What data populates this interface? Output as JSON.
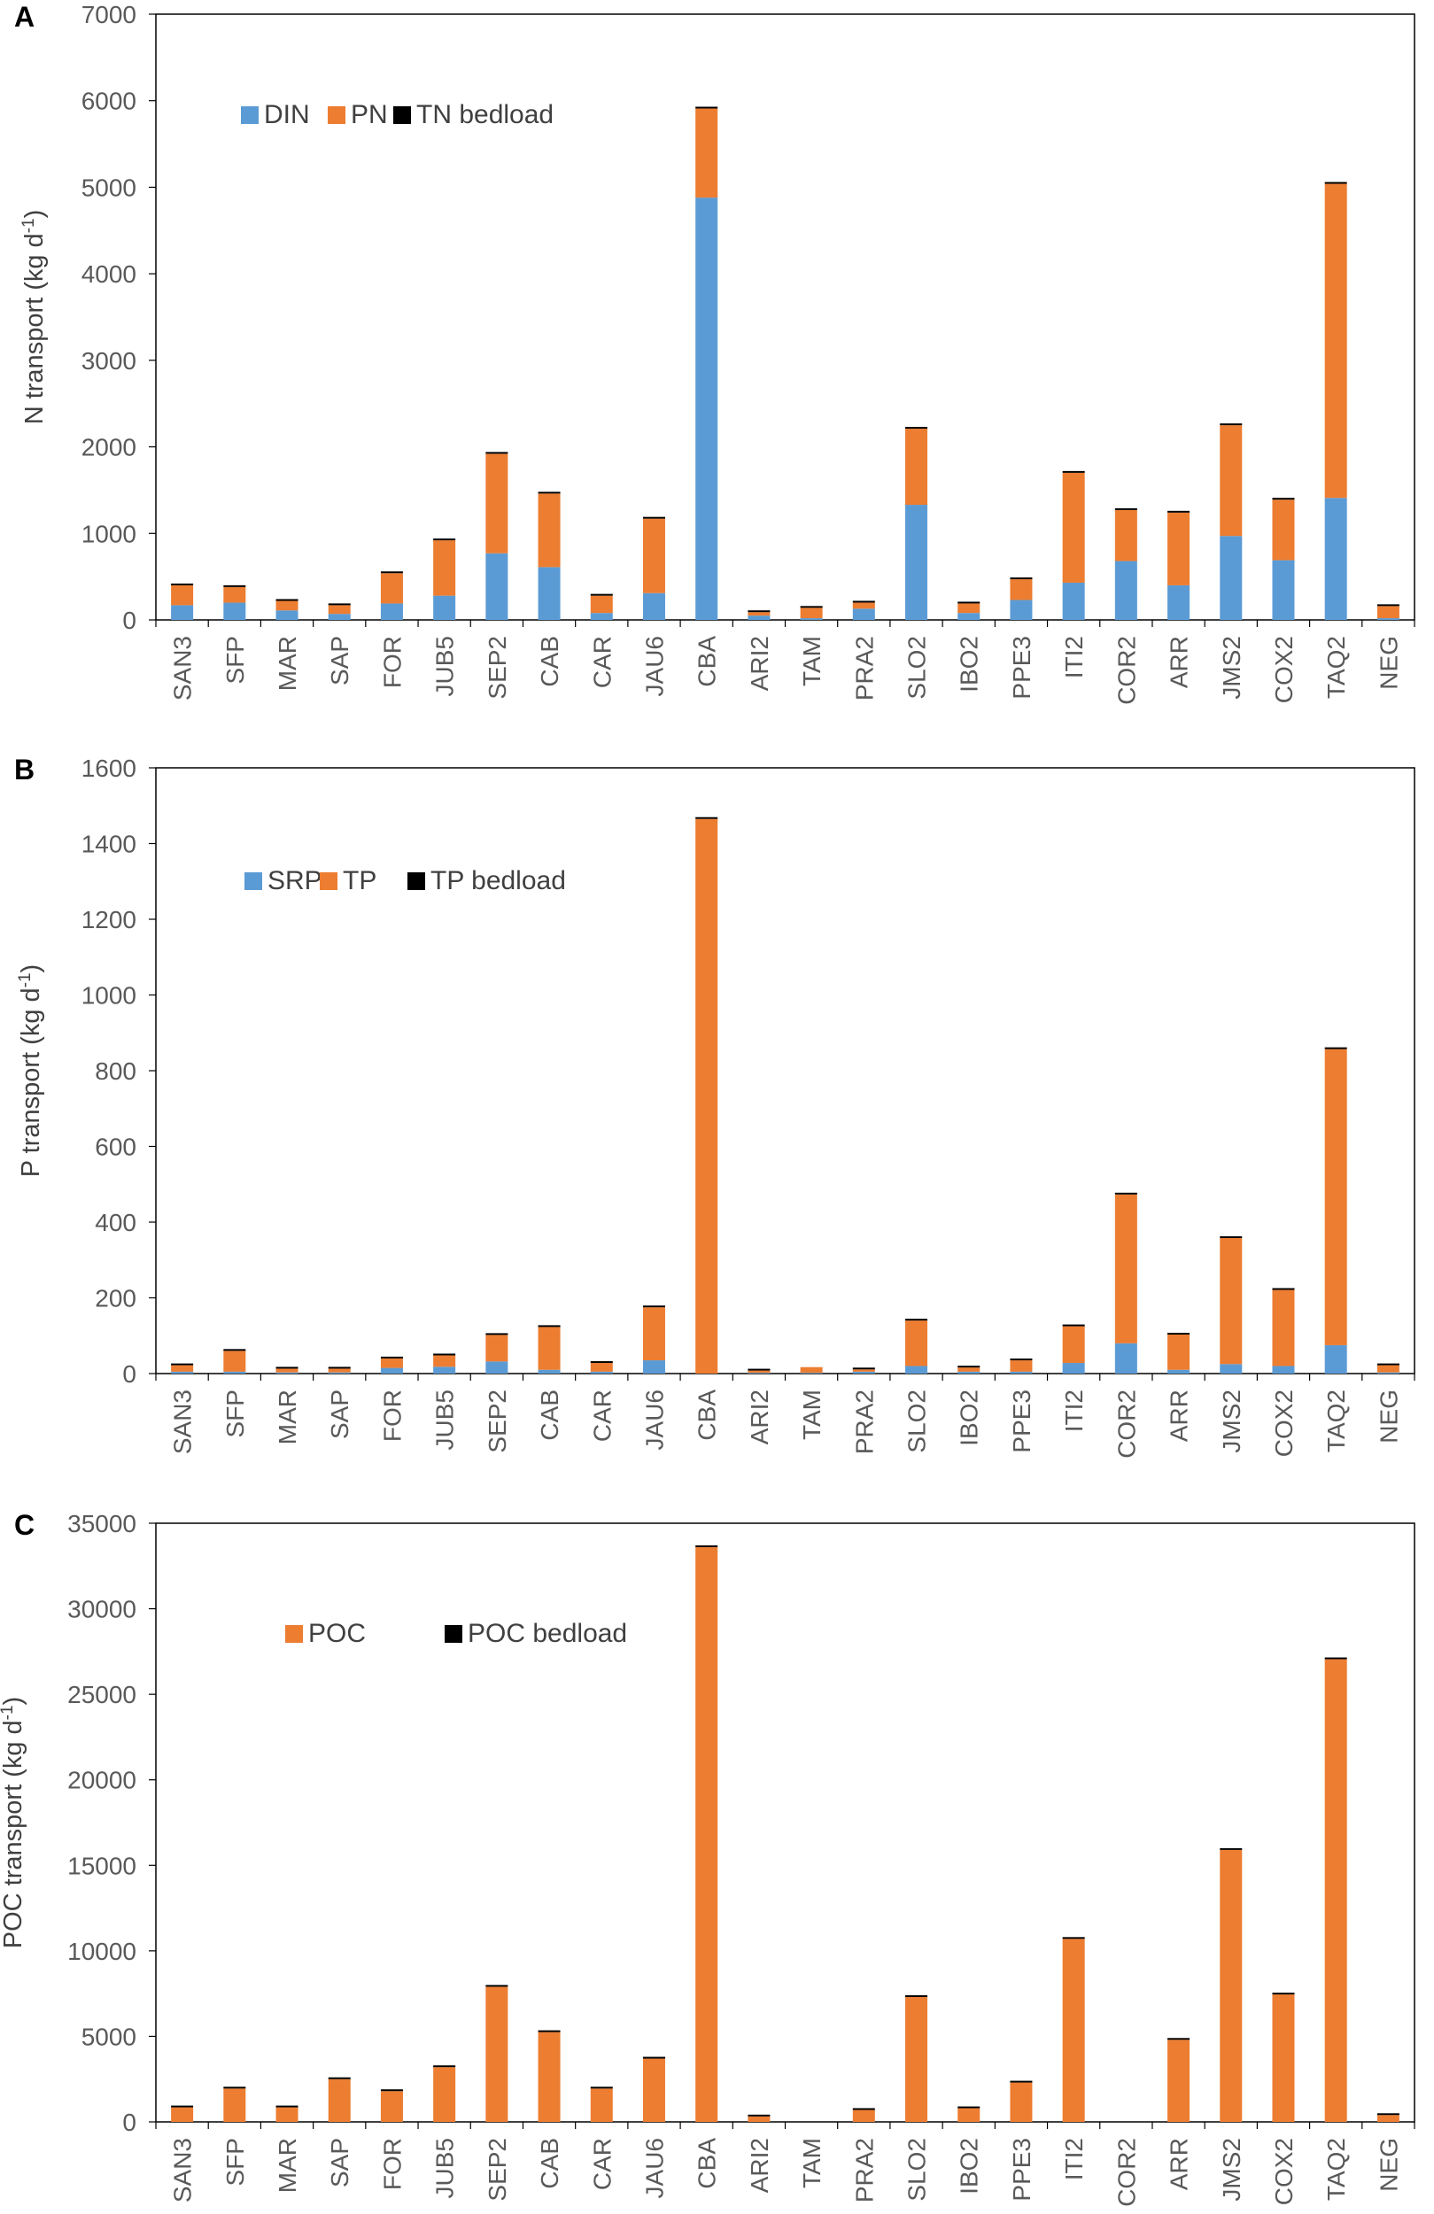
{
  "colors": {
    "DIN": "#5b9bd5",
    "SRP": "#5b9bd5",
    "PN": "#ed7d31",
    "TP": "#ed7d31",
    "POC": "#ed7d31",
    "bedload": "#000000",
    "axis": "#000000",
    "tickText": "#595959"
  },
  "chart_data": [
    {
      "panel": "A",
      "type": "bar",
      "stacked": true,
      "ylabel": "N transport (kg d",
      "ylabel_sup": "-1",
      "ylabel_end": ")",
      "ylim": [
        0,
        7000
      ],
      "yticks": [
        0,
        1000,
        2000,
        3000,
        4000,
        5000,
        6000,
        7000
      ],
      "categories": [
        "SAN3",
        "SFP",
        "MAR",
        "SAP",
        "FOR",
        "JUB5",
        "SEP2",
        "CAB",
        "CAR",
        "JAU6",
        "CBA",
        "ARI2",
        "TAM",
        "PRA2",
        "SLO2",
        "IBO2",
        "PPE3",
        "ITI2",
        "COR2",
        "ARR",
        "JMS2",
        "COX2",
        "TAQ2",
        "NEG"
      ],
      "series": [
        {
          "name": "DIN",
          "color": "#5b9bd5",
          "values": [
            170,
            200,
            110,
            70,
            190,
            280,
            770,
            610,
            80,
            310,
            4880,
            50,
            20,
            130,
            1330,
            80,
            230,
            430,
            680,
            400,
            970,
            690,
            1410,
            20
          ]
        },
        {
          "name": "PN",
          "color": "#ed7d31",
          "values": [
            230,
            180,
            110,
            100,
            350,
            640,
            1150,
            850,
            200,
            860,
            1030,
            40,
            120,
            70,
            880,
            110,
            240,
            1270,
            590,
            840,
            1280,
            700,
            3630,
            140
          ]
        },
        {
          "name": "TN bedload",
          "color": "#000000",
          "values": [
            10,
            10,
            10,
            10,
            10,
            10,
            10,
            10,
            10,
            10,
            10,
            10,
            5,
            10,
            10,
            10,
            10,
            10,
            10,
            10,
            10,
            10,
            10,
            10
          ]
        }
      ],
      "legend": [
        "DIN",
        "PN",
        "TN bedload"
      ]
    },
    {
      "panel": "B",
      "type": "bar",
      "stacked": true,
      "ylabel": "P transport (kg d",
      "ylabel_sup": "-1",
      "ylabel_end": ")",
      "ylim": [
        0,
        1600
      ],
      "yticks": [
        0,
        200,
        400,
        600,
        800,
        1000,
        1200,
        1400,
        1600
      ],
      "categories": [
        "SAN3",
        "SFP",
        "MAR",
        "SAP",
        "FOR",
        "JUB5",
        "SEP2",
        "CAB",
        "CAR",
        "JAU6",
        "CBA",
        "ARI2",
        "TAM",
        "PRA2",
        "SLO2",
        "IBO2",
        "PPE3",
        "ITI2",
        "COR2",
        "ARR",
        "JMS2",
        "COX2",
        "TAQ2",
        "NEG"
      ],
      "series": [
        {
          "name": "SRP",
          "color": "#5b9bd5",
          "values": [
            5,
            5,
            3,
            3,
            15,
            18,
            32,
            10,
            5,
            35,
            0,
            2,
            2,
            5,
            20,
            5,
            5,
            28,
            80,
            10,
            25,
            20,
            75,
            3
          ]
        },
        {
          "name": "TP",
          "color": "#ed7d31",
          "values": [
            17,
            55,
            10,
            10,
            25,
            30,
            70,
            113,
            23,
            140,
            1465,
            6,
            15,
            6,
            120,
            11,
            30,
            97,
            393,
            93,
            333,
            201,
            782,
            19
          ]
        },
        {
          "name": "TP bedload",
          "color": "#000000",
          "values": [
            2,
            2,
            2,
            2,
            2,
            2,
            2,
            2,
            2,
            2,
            2,
            2,
            0,
            3,
            2,
            2,
            2,
            2,
            2,
            2,
            2,
            2,
            2,
            2
          ]
        }
      ],
      "legend": [
        "SRP",
        "TP",
        "TP bedload"
      ]
    },
    {
      "panel": "C",
      "type": "bar",
      "stacked": true,
      "ylabel": "POC transport (kg d",
      "ylabel_sup": "-1",
      "ylabel_end": ")",
      "ylim": [
        0,
        35000
      ],
      "yticks": [
        0,
        5000,
        10000,
        15000,
        20000,
        25000,
        30000,
        35000
      ],
      "categories": [
        "SAN3",
        "SFP",
        "MAR",
        "SAP",
        "FOR",
        "JUB5",
        "SEP2",
        "CAB",
        "CAR",
        "JAU6",
        "CBA",
        "ARI2",
        "TAM",
        "PRA2",
        "SLO2",
        "IBO2",
        "PPE3",
        "ITI2",
        "COR2",
        "ARR",
        "JMS2",
        "COX2",
        "TAQ2",
        "NEG"
      ],
      "series": [
        {
          "name": "POC",
          "color": "#ed7d31",
          "values": [
            850,
            1950,
            850,
            2500,
            1800,
            3200,
            7900,
            5250,
            1950,
            3700,
            33600,
            320,
            0,
            700,
            7300,
            800,
            2300,
            10700,
            0,
            4800,
            15900,
            7450,
            27050,
            400
          ]
        },
        {
          "name": "POC bedload",
          "color": "#000000",
          "values": [
            30,
            30,
            30,
            30,
            30,
            30,
            30,
            30,
            30,
            30,
            30,
            30,
            0,
            30,
            30,
            30,
            30,
            30,
            0,
            30,
            30,
            30,
            30,
            30
          ]
        }
      ],
      "legend": [
        "POC",
        "POC bedload"
      ]
    }
  ]
}
